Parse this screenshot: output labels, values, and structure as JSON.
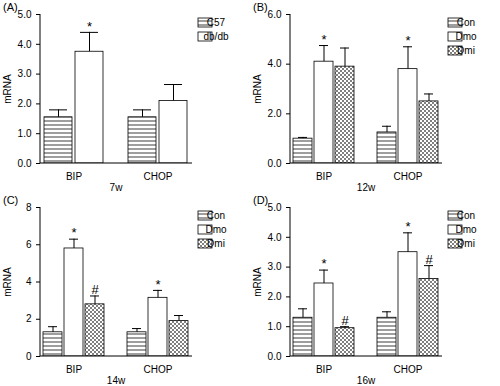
{
  "chart_data": [
    {
      "type": "bar",
      "title": "(A)",
      "x_label": "7w",
      "y_label": "mRNA",
      "categories": [
        "BIP",
        "CHOP"
      ],
      "series": [
        {
          "name": "C57",
          "color": "#9e9e9e",
          "values": [
            1.55,
            1.55
          ],
          "errors": [
            0.25,
            0.25
          ],
          "annotations": [
            null,
            null
          ]
        },
        {
          "name": "db/db",
          "color": "#ffffff",
          "values": [
            3.75,
            2.1
          ],
          "errors": [
            0.65,
            0.55
          ],
          "annotations": [
            "*",
            null
          ]
        }
      ],
      "ylim": [
        0,
        5
      ],
      "yticks": [
        0,
        1,
        2,
        3,
        4,
        5
      ],
      "legend": "right"
    },
    {
      "type": "bar",
      "title": "(B)",
      "x_label": "12w",
      "y_label": "mRNA",
      "categories": [
        "BIP",
        "CHOP"
      ],
      "series": [
        {
          "name": "Con",
          "color": "#9e9e9e",
          "values": [
            1.0,
            1.25
          ],
          "errors": [
            0.05,
            0.25
          ],
          "annotations": [
            null,
            null
          ]
        },
        {
          "name": "Dmo",
          "color": "#ffffff",
          "values": [
            4.1,
            3.8
          ],
          "errors": [
            0.65,
            0.9
          ],
          "annotations": [
            "*",
            "*"
          ]
        },
        {
          "name": "Dmi",
          "color": "#808080",
          "values": [
            3.9,
            2.5
          ],
          "errors": [
            0.75,
            0.3
          ],
          "annotations": [
            null,
            null
          ]
        }
      ],
      "ylim": [
        0,
        6
      ],
      "yticks": [
        0,
        2,
        4,
        6
      ],
      "legend": "right"
    },
    {
      "type": "bar",
      "title": "(C)",
      "x_label": "14w",
      "y_label": "mRNA",
      "categories": [
        "BIP",
        "CHOP"
      ],
      "series": [
        {
          "name": "Con",
          "color": "#9e9e9e",
          "values": [
            1.3,
            1.3
          ],
          "errors": [
            0.3,
            0.2
          ],
          "annotations": [
            null,
            null
          ]
        },
        {
          "name": "Dmo",
          "color": "#ffffff",
          "values": [
            5.8,
            3.15
          ],
          "errors": [
            0.5,
            0.4
          ],
          "annotations": [
            "*",
            "*"
          ]
        },
        {
          "name": "Dmi",
          "color": "#808080",
          "values": [
            2.8,
            1.9
          ],
          "errors": [
            0.45,
            0.3
          ],
          "annotations": [
            "#",
            null
          ]
        }
      ],
      "ylim": [
        0,
        8
      ],
      "yticks": [
        0,
        2,
        4,
        6,
        8
      ],
      "legend": "right"
    },
    {
      "type": "bar",
      "title": "(D)",
      "x_label": "16w",
      "y_label": "mRNA",
      "categories": [
        "BIP",
        "CHOP"
      ],
      "series": [
        {
          "name": "Con",
          "color": "#9e9e9e",
          "values": [
            1.3,
            1.3
          ],
          "errors": [
            0.3,
            0.2
          ],
          "annotations": [
            null,
            null
          ]
        },
        {
          "name": "Dmo",
          "color": "#ffffff",
          "values": [
            2.45,
            3.5
          ],
          "errors": [
            0.45,
            0.65
          ],
          "annotations": [
            "*",
            "*"
          ]
        },
        {
          "name": "Dmi",
          "color": "#808080",
          "values": [
            0.95,
            2.6
          ],
          "errors": [
            0.05,
            0.45
          ],
          "annotations": [
            "#",
            "#"
          ]
        }
      ],
      "ylim": [
        0,
        5
      ],
      "yticks": [
        0,
        1,
        2,
        3,
        4,
        5
      ],
      "legend": "right"
    }
  ]
}
